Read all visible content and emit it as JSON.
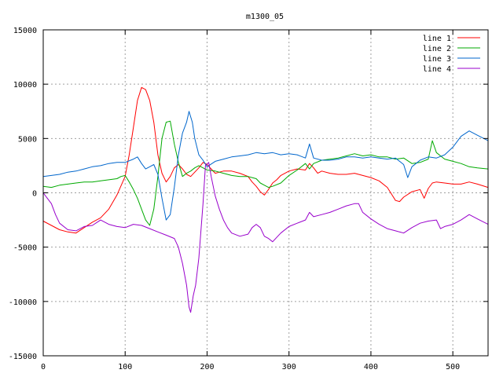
{
  "chart_data": {
    "type": "line",
    "title": "m1300_05",
    "xlabel": "",
    "ylabel": "",
    "xlim": [
      0,
      543
    ],
    "ylim": [
      -15000,
      15000
    ],
    "x_ticks": [
      0,
      100,
      200,
      300,
      400,
      500
    ],
    "x_tick_labels": [
      "0",
      "100",
      "200",
      "300",
      "400",
      "500"
    ],
    "y_ticks": [
      -15000,
      -10000,
      -5000,
      0,
      5000,
      10000,
      15000
    ],
    "y_tick_labels": [
      "-15000",
      "-10000",
      "-5000",
      "0",
      "5000",
      "10000",
      "15000"
    ],
    "grid": true,
    "legend_position": "top-right",
    "series": [
      {
        "name": "line 1",
        "color": "#ff0000",
        "points": [
          [
            0,
            -2600
          ],
          [
            10,
            -3000
          ],
          [
            20,
            -3400
          ],
          [
            30,
            -3600
          ],
          [
            40,
            -3700
          ],
          [
            50,
            -3200
          ],
          [
            60,
            -2700
          ],
          [
            70,
            -2300
          ],
          [
            80,
            -1500
          ],
          [
            90,
            -200
          ],
          [
            100,
            1500
          ],
          [
            105,
            3500
          ],
          [
            110,
            6000
          ],
          [
            115,
            8500
          ],
          [
            120,
            9700
          ],
          [
            125,
            9500
          ],
          [
            130,
            8500
          ],
          [
            135,
            6500
          ],
          [
            140,
            3500
          ],
          [
            145,
            1800
          ],
          [
            150,
            1000
          ],
          [
            155,
            1500
          ],
          [
            160,
            2300
          ],
          [
            165,
            2600
          ],
          [
            170,
            2200
          ],
          [
            175,
            1700
          ],
          [
            180,
            1500
          ],
          [
            185,
            1900
          ],
          [
            190,
            2300
          ],
          [
            195,
            2800
          ],
          [
            200,
            2600
          ],
          [
            205,
            2200
          ],
          [
            210,
            1800
          ],
          [
            215,
            1900
          ],
          [
            220,
            2000
          ],
          [
            230,
            2000
          ],
          [
            240,
            1800
          ],
          [
            250,
            1500
          ],
          [
            255,
            1000
          ],
          [
            260,
            600
          ],
          [
            265,
            100
          ],
          [
            270,
            -200
          ],
          [
            275,
            300
          ],
          [
            280,
            900
          ],
          [
            285,
            1200
          ],
          [
            290,
            1600
          ],
          [
            300,
            2000
          ],
          [
            310,
            2200
          ],
          [
            320,
            2100
          ],
          [
            325,
            2700
          ],
          [
            330,
            2300
          ],
          [
            335,
            1800
          ],
          [
            340,
            2000
          ],
          [
            350,
            1800
          ],
          [
            360,
            1700
          ],
          [
            370,
            1700
          ],
          [
            380,
            1800
          ],
          [
            390,
            1600
          ],
          [
            400,
            1400
          ],
          [
            410,
            1100
          ],
          [
            420,
            500
          ],
          [
            425,
            -100
          ],
          [
            430,
            -700
          ],
          [
            435,
            -800
          ],
          [
            440,
            -400
          ],
          [
            450,
            100
          ],
          [
            460,
            300
          ],
          [
            465,
            -500
          ],
          [
            470,
            400
          ],
          [
            475,
            900
          ],
          [
            480,
            1000
          ],
          [
            490,
            900
          ],
          [
            500,
            800
          ],
          [
            510,
            800
          ],
          [
            520,
            1000
          ],
          [
            530,
            800
          ],
          [
            543,
            500
          ]
        ]
      },
      {
        "name": "line 2",
        "color": "#00aa00",
        "points": [
          [
            0,
            600
          ],
          [
            10,
            500
          ],
          [
            20,
            700
          ],
          [
            30,
            800
          ],
          [
            40,
            900
          ],
          [
            50,
            1000
          ],
          [
            60,
            1000
          ],
          [
            70,
            1100
          ],
          [
            80,
            1200
          ],
          [
            90,
            1300
          ],
          [
            95,
            1500
          ],
          [
            100,
            1600
          ],
          [
            105,
            1000
          ],
          [
            110,
            300
          ],
          [
            115,
            -500
          ],
          [
            120,
            -1500
          ],
          [
            125,
            -2500
          ],
          [
            130,
            -3000
          ],
          [
            135,
            -1500
          ],
          [
            140,
            1500
          ],
          [
            145,
            5000
          ],
          [
            150,
            6500
          ],
          [
            155,
            6600
          ],
          [
            160,
            4500
          ],
          [
            165,
            2800
          ],
          [
            170,
            1500
          ],
          [
            175,
            1800
          ],
          [
            180,
            2000
          ],
          [
            185,
            2300
          ],
          [
            190,
            2500
          ],
          [
            195,
            2300
          ],
          [
            200,
            2100
          ],
          [
            210,
            2000
          ],
          [
            220,
            1800
          ],
          [
            230,
            1600
          ],
          [
            240,
            1500
          ],
          [
            250,
            1500
          ],
          [
            255,
            1400
          ],
          [
            260,
            1300
          ],
          [
            265,
            900
          ],
          [
            270,
            700
          ],
          [
            275,
            500
          ],
          [
            280,
            600
          ],
          [
            290,
            900
          ],
          [
            300,
            1600
          ],
          [
            310,
            2100
          ],
          [
            320,
            2700
          ],
          [
            325,
            2200
          ],
          [
            330,
            2700
          ],
          [
            340,
            3000
          ],
          [
            350,
            3100
          ],
          [
            360,
            3200
          ],
          [
            370,
            3400
          ],
          [
            380,
            3600
          ],
          [
            390,
            3400
          ],
          [
            400,
            3500
          ],
          [
            410,
            3300
          ],
          [
            420,
            3300
          ],
          [
            430,
            3100
          ],
          [
            440,
            3200
          ],
          [
            450,
            2700
          ],
          [
            460,
            2800
          ],
          [
            470,
            3100
          ],
          [
            475,
            4800
          ],
          [
            480,
            3700
          ],
          [
            490,
            3100
          ],
          [
            500,
            2900
          ],
          [
            510,
            2700
          ],
          [
            520,
            2400
          ],
          [
            530,
            2300
          ],
          [
            543,
            2200
          ]
        ]
      },
      {
        "name": "line 3",
        "color": "#0066cc",
        "points": [
          [
            0,
            1500
          ],
          [
            10,
            1600
          ],
          [
            20,
            1700
          ],
          [
            30,
            1900
          ],
          [
            40,
            2000
          ],
          [
            50,
            2200
          ],
          [
            60,
            2400
          ],
          [
            70,
            2500
          ],
          [
            80,
            2700
          ],
          [
            90,
            2800
          ],
          [
            100,
            2800
          ],
          [
            110,
            3100
          ],
          [
            115,
            3300
          ],
          [
            120,
            2700
          ],
          [
            125,
            2200
          ],
          [
            130,
            2400
          ],
          [
            135,
            2600
          ],
          [
            140,
            1700
          ],
          [
            145,
            -500
          ],
          [
            150,
            -2500
          ],
          [
            155,
            -2000
          ],
          [
            160,
            500
          ],
          [
            165,
            3500
          ],
          [
            170,
            5500
          ],
          [
            175,
            6500
          ],
          [
            178,
            7500
          ],
          [
            182,
            6500
          ],
          [
            185,
            5000
          ],
          [
            190,
            3500
          ],
          [
            195,
            3000
          ],
          [
            200,
            2400
          ],
          [
            210,
            2900
          ],
          [
            220,
            3100
          ],
          [
            230,
            3300
          ],
          [
            240,
            3400
          ],
          [
            250,
            3500
          ],
          [
            260,
            3700
          ],
          [
            270,
            3600
          ],
          [
            280,
            3700
          ],
          [
            290,
            3500
          ],
          [
            300,
            3600
          ],
          [
            310,
            3500
          ],
          [
            320,
            3200
          ],
          [
            325,
            4500
          ],
          [
            330,
            3200
          ],
          [
            340,
            3000
          ],
          [
            350,
            3000
          ],
          [
            360,
            3100
          ],
          [
            370,
            3300
          ],
          [
            380,
            3300
          ],
          [
            390,
            3200
          ],
          [
            400,
            3300
          ],
          [
            410,
            3200
          ],
          [
            420,
            3100
          ],
          [
            430,
            3200
          ],
          [
            440,
            2600
          ],
          [
            445,
            1400
          ],
          [
            450,
            2400
          ],
          [
            460,
            3000
          ],
          [
            470,
            3300
          ],
          [
            480,
            3200
          ],
          [
            490,
            3500
          ],
          [
            500,
            4200
          ],
          [
            510,
            5200
          ],
          [
            520,
            5700
          ],
          [
            530,
            5300
          ],
          [
            543,
            4800
          ]
        ]
      },
      {
        "name": "line 4",
        "color": "#9900cc",
        "points": [
          [
            0,
            0
          ],
          [
            5,
            -500
          ],
          [
            10,
            -1000
          ],
          [
            15,
            -2000
          ],
          [
            20,
            -2800
          ],
          [
            30,
            -3400
          ],
          [
            40,
            -3500
          ],
          [
            50,
            -3100
          ],
          [
            60,
            -3000
          ],
          [
            70,
            -2500
          ],
          [
            80,
            -2900
          ],
          [
            90,
            -3100
          ],
          [
            100,
            -3200
          ],
          [
            110,
            -2900
          ],
          [
            120,
            -3000
          ],
          [
            130,
            -3300
          ],
          [
            140,
            -3600
          ],
          [
            150,
            -3900
          ],
          [
            160,
            -4200
          ],
          [
            165,
            -5000
          ],
          [
            170,
            -6500
          ],
          [
            175,
            -8500
          ],
          [
            178,
            -10500
          ],
          [
            180,
            -11000
          ],
          [
            183,
            -9500
          ],
          [
            186,
            -8500
          ],
          [
            190,
            -6000
          ],
          [
            195,
            -1000
          ],
          [
            198,
            2500
          ],
          [
            202,
            2800
          ],
          [
            205,
            1500
          ],
          [
            210,
            -300
          ],
          [
            215,
            -1500
          ],
          [
            220,
            -2500
          ],
          [
            225,
            -3200
          ],
          [
            230,
            -3700
          ],
          [
            240,
            -4000
          ],
          [
            250,
            -3800
          ],
          [
            255,
            -3200
          ],
          [
            260,
            -2900
          ],
          [
            265,
            -3200
          ],
          [
            270,
            -4000
          ],
          [
            275,
            -4200
          ],
          [
            280,
            -4500
          ],
          [
            285,
            -4100
          ],
          [
            290,
            -3700
          ],
          [
            300,
            -3100
          ],
          [
            310,
            -2800
          ],
          [
            320,
            -2500
          ],
          [
            325,
            -1800
          ],
          [
            330,
            -2200
          ],
          [
            340,
            -2000
          ],
          [
            350,
            -1800
          ],
          [
            360,
            -1500
          ],
          [
            370,
            -1200
          ],
          [
            380,
            -1000
          ],
          [
            385,
            -1000
          ],
          [
            390,
            -1800
          ],
          [
            400,
            -2400
          ],
          [
            410,
            -2900
          ],
          [
            420,
            -3300
          ],
          [
            430,
            -3500
          ],
          [
            440,
            -3700
          ],
          [
            450,
            -3200
          ],
          [
            460,
            -2800
          ],
          [
            470,
            -2600
          ],
          [
            480,
            -2500
          ],
          [
            485,
            -3300
          ],
          [
            490,
            -3100
          ],
          [
            500,
            -2900
          ],
          [
            510,
            -2500
          ],
          [
            520,
            -2000
          ],
          [
            530,
            -2400
          ],
          [
            543,
            -2900
          ]
        ]
      }
    ]
  }
}
